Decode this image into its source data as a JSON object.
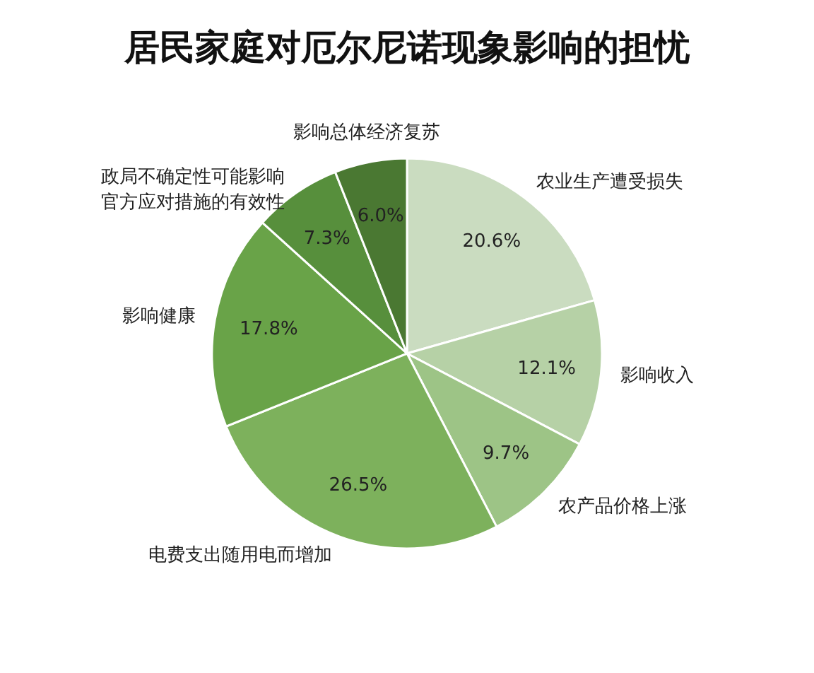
{
  "chart_data": {
    "type": "pie",
    "title": "居民家庭对厄尔尼诺现象影响的担忧",
    "categories": [
      "农业生产遭受损失",
      "影响收入",
      "农产品价格上涨",
      "电费支出随用电而增加",
      "影响健康",
      "政局不确定性可能影响官方应对措施的有效性",
      "影响总体经济复苏"
    ],
    "values": [
      20.6,
      12.1,
      9.7,
      26.5,
      17.8,
      7.3,
      6.0
    ],
    "colors": [
      "#cadcc0",
      "#b6d1a6",
      "#9dc486",
      "#7db15c",
      "#69a348",
      "#578f3c",
      "#4a7832"
    ],
    "value_labels": [
      "20.6%",
      "12.1%",
      "9.7%",
      "26.5%",
      "17.8%",
      "7.3%",
      "6.0%"
    ],
    "legend": false
  }
}
